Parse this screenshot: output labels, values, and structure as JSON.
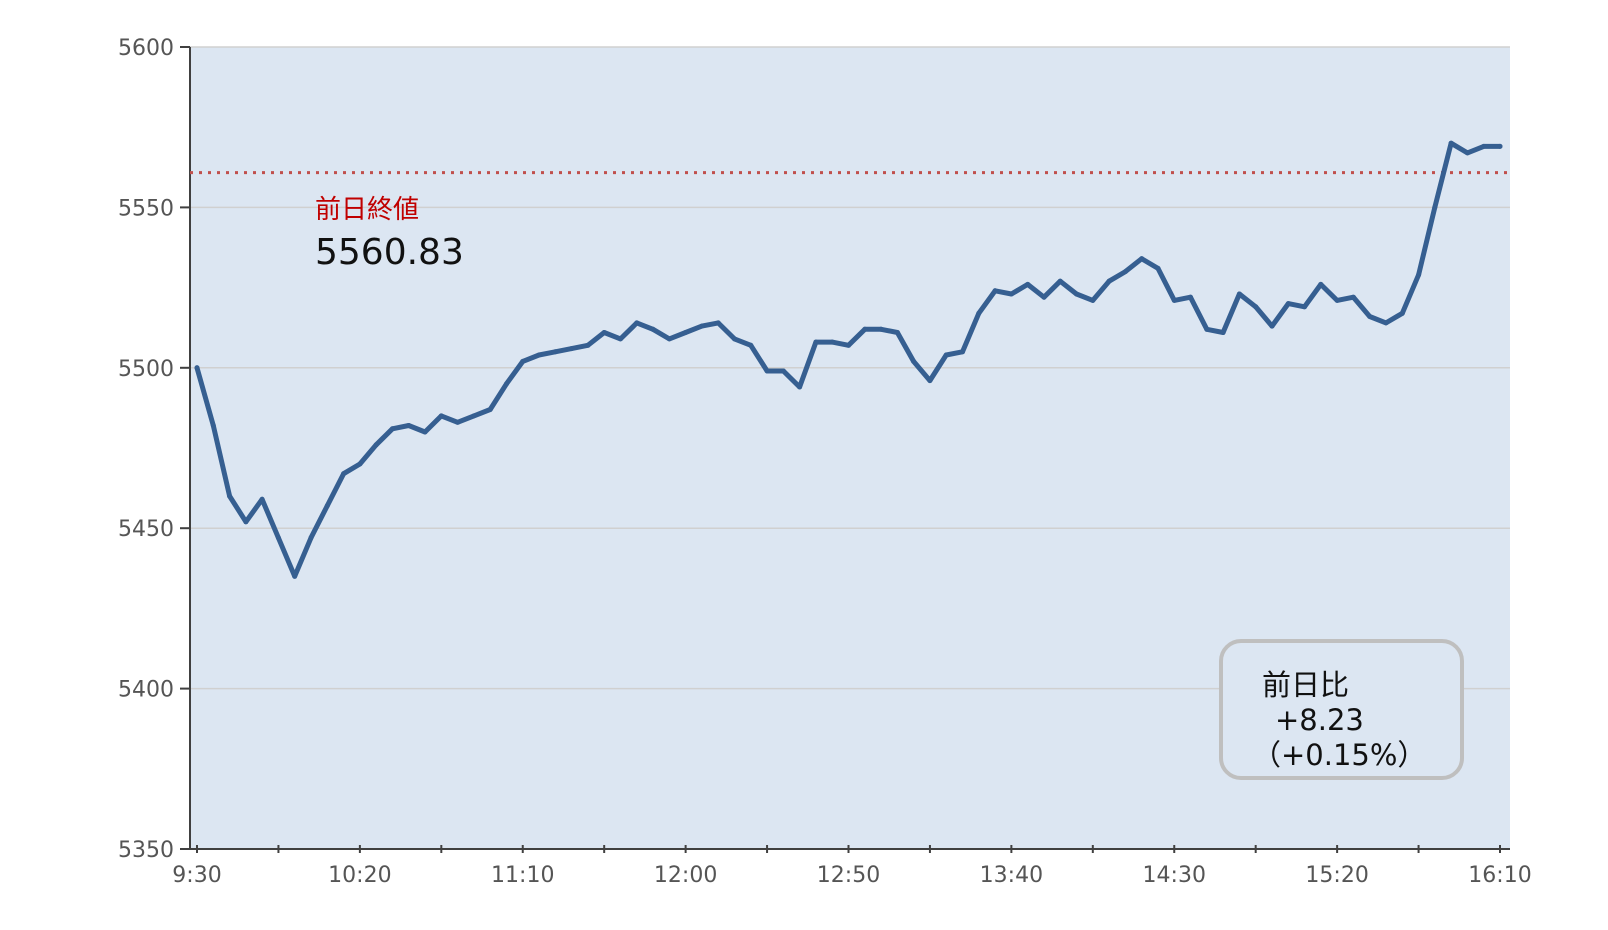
{
  "colors": {
    "plot_background": "#dce6f2",
    "series": "#365f91",
    "reference_line": "#c0504d",
    "reference_label": "#c00000",
    "gridline": "#d0d0d0",
    "axis": "#404040",
    "callout_border": "#bfbfbf"
  },
  "chart_data": {
    "type": "line",
    "title": "",
    "xlabel": "",
    "ylabel": "",
    "ylim": [
      5350,
      5600
    ],
    "y_ticks": [
      5350,
      5400,
      5450,
      5500,
      5550,
      5600
    ],
    "x_tick_labels": [
      "9:30",
      "10:20",
      "11:10",
      "12:00",
      "12:50",
      "13:40",
      "14:30",
      "15:20",
      "16:10"
    ],
    "grid": "horizontal",
    "legend": "none",
    "series": [
      {
        "values": [
          5500,
          5482,
          5460,
          5452,
          5459,
          5447,
          5435,
          5447,
          5457,
          5467,
          5470,
          5476,
          5481,
          5482,
          5480,
          5485,
          5483,
          5485,
          5487,
          5495,
          5502,
          5504,
          5505,
          5506,
          5507,
          5511,
          5509,
          5514,
          5512,
          5509,
          5511,
          5513,
          5514,
          5509,
          5507,
          5499,
          5499,
          5494,
          5508,
          5508,
          5507,
          5512,
          5512,
          5511,
          5502,
          5496,
          5504,
          5505,
          5517,
          5524,
          5523,
          5526,
          5522,
          5527,
          5523,
          5521,
          5527,
          5530,
          5534,
          5531,
          5521,
          5522,
          5512,
          5511,
          5523,
          5519,
          5513,
          5520,
          5519,
          5526,
          5521,
          5522,
          5516,
          5514,
          5517,
          5529,
          5550,
          5570,
          5567,
          5569,
          5569
        ]
      }
    ],
    "reference_line": {
      "label": "前日終値",
      "value": 5560.83,
      "value_text": "5560.83"
    },
    "change_callout": {
      "label": "前日比",
      "change": "+8.23",
      "percent": "（+0.15%）"
    }
  }
}
